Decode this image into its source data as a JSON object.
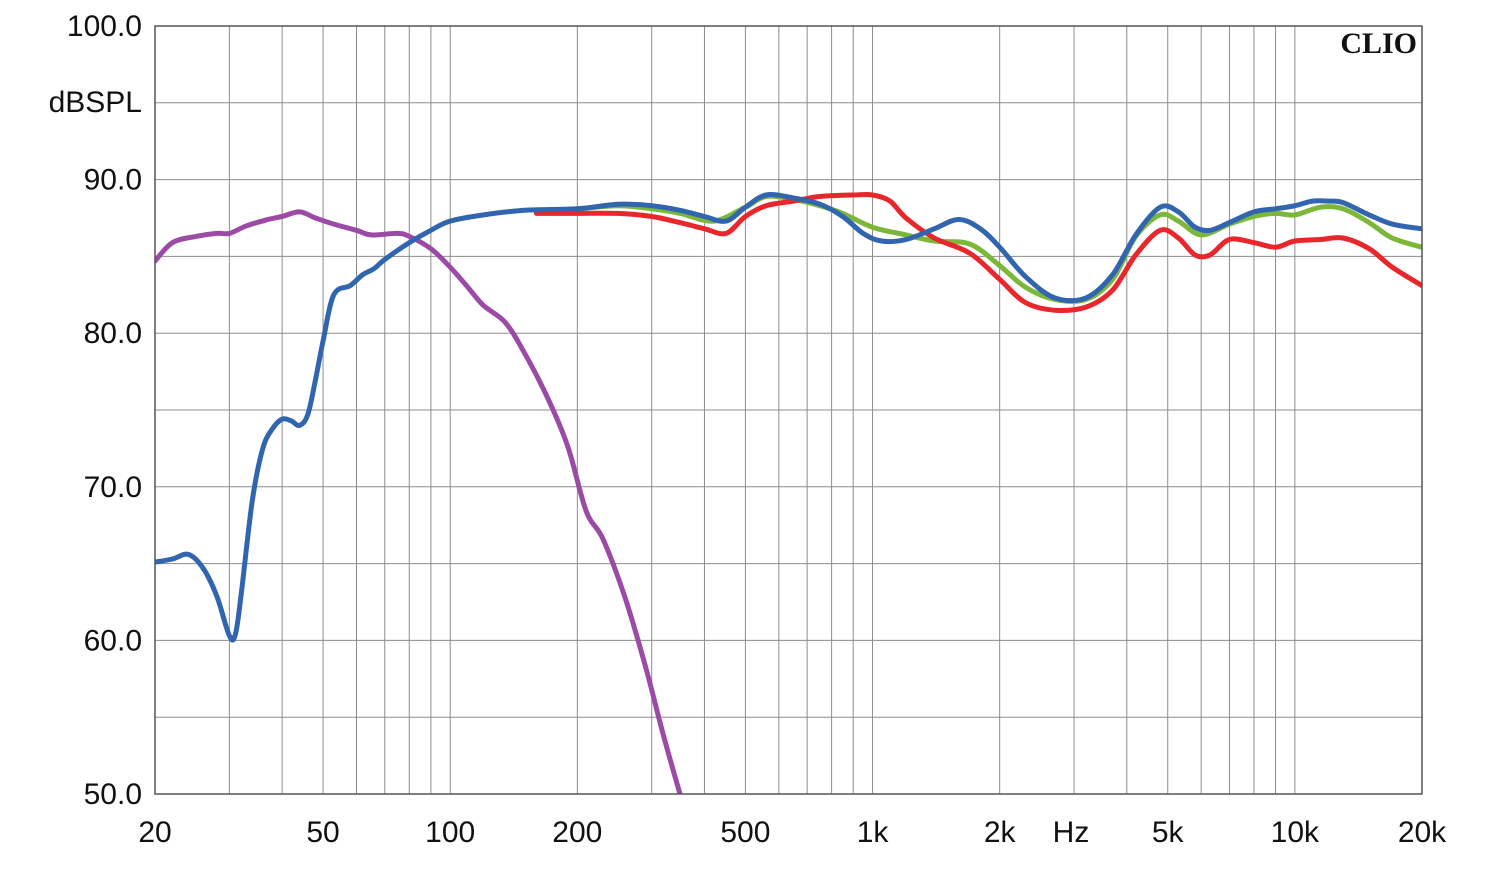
{
  "chart_data": {
    "type": "line",
    "brand": "CLIO",
    "ylabel": "dBSPL",
    "xlabel": "Hz",
    "x_scale": "log",
    "xlim": [
      20,
      20000
    ],
    "ylim": [
      50,
      100
    ],
    "grid": true,
    "legend": "none",
    "y_ticks": [
      {
        "value": 100,
        "label": "100.0"
      },
      {
        "value": 90,
        "label": "90.0"
      },
      {
        "value": 80,
        "label": "80.0"
      },
      {
        "value": 70,
        "label": "70.0"
      },
      {
        "value": 60,
        "label": "60.0"
      },
      {
        "value": 50,
        "label": "50.0"
      }
    ],
    "x_ticks": [
      {
        "value": 20,
        "label": "20"
      },
      {
        "value": 50,
        "label": "50"
      },
      {
        "value": 100,
        "label": "100"
      },
      {
        "value": 200,
        "label": "200"
      },
      {
        "value": 500,
        "label": "500"
      },
      {
        "value": 1000,
        "label": "1k"
      },
      {
        "value": 2000,
        "label": "2k"
      },
      {
        "value": 5000,
        "label": "5k"
      },
      {
        "value": 10000,
        "label": "10k"
      },
      {
        "value": 20000,
        "label": "20k"
      }
    ],
    "series": [
      {
        "color": "#9b4ba5",
        "points": [
          [
            20,
            84.7
          ],
          [
            22,
            85.9
          ],
          [
            25,
            86.3
          ],
          [
            28,
            86.5
          ],
          [
            30,
            86.5
          ],
          [
            33,
            87.0
          ],
          [
            37,
            87.4
          ],
          [
            40,
            87.6
          ],
          [
            44,
            87.9
          ],
          [
            48,
            87.5
          ],
          [
            53,
            87.1
          ],
          [
            60,
            86.7
          ],
          [
            65,
            86.4
          ],
          [
            75,
            86.5
          ],
          [
            80,
            86.3
          ],
          [
            90,
            85.5
          ],
          [
            100,
            84.3
          ],
          [
            110,
            83.0
          ],
          [
            120,
            81.8
          ],
          [
            135,
            80.7
          ],
          [
            150,
            78.7
          ],
          [
            170,
            75.8
          ],
          [
            190,
            72.6
          ],
          [
            210,
            68.4
          ],
          [
            230,
            66.6
          ],
          [
            260,
            62.7
          ],
          [
            290,
            58.3
          ],
          [
            320,
            53.8
          ],
          [
            350,
            50.0
          ]
        ]
      },
      {
        "color": "#7bb83a",
        "points": [
          [
            160,
            87.9
          ],
          [
            200,
            88.1
          ],
          [
            250,
            88.3
          ],
          [
            300,
            88.1
          ],
          [
            350,
            87.8
          ],
          [
            420,
            87.3
          ],
          [
            500,
            88.2
          ],
          [
            560,
            88.9
          ],
          [
            650,
            88.7
          ],
          [
            750,
            88.3
          ],
          [
            850,
            87.8
          ],
          [
            1000,
            86.9
          ],
          [
            1200,
            86.4
          ],
          [
            1400,
            86.0
          ],
          [
            1700,
            85.8
          ],
          [
            2000,
            84.4
          ],
          [
            2300,
            83.0
          ],
          [
            2700,
            82.2
          ],
          [
            3200,
            82.2
          ],
          [
            3700,
            83.5
          ],
          [
            4200,
            86.3
          ],
          [
            4800,
            87.7
          ],
          [
            5300,
            87.3
          ],
          [
            6000,
            86.4
          ],
          [
            7000,
            87.1
          ],
          [
            8000,
            87.6
          ],
          [
            9000,
            87.8
          ],
          [
            10000,
            87.7
          ],
          [
            11500,
            88.2
          ],
          [
            13000,
            88.1
          ],
          [
            15000,
            87.2
          ],
          [
            17000,
            86.2
          ],
          [
            20000,
            85.6
          ]
        ]
      },
      {
        "color": "#e8262c",
        "points": [
          [
            160,
            87.8
          ],
          [
            200,
            87.8
          ],
          [
            250,
            87.8
          ],
          [
            300,
            87.6
          ],
          [
            350,
            87.2
          ],
          [
            400,
            86.8
          ],
          [
            450,
            86.5
          ],
          [
            500,
            87.6
          ],
          [
            560,
            88.3
          ],
          [
            650,
            88.6
          ],
          [
            750,
            88.9
          ],
          [
            900,
            89.0
          ],
          [
            1000,
            89.0
          ],
          [
            1100,
            88.6
          ],
          [
            1200,
            87.5
          ],
          [
            1400,
            86.2
          ],
          [
            1700,
            85.2
          ],
          [
            2000,
            83.5
          ],
          [
            2300,
            82.0
          ],
          [
            2700,
            81.5
          ],
          [
            3200,
            81.7
          ],
          [
            3700,
            82.8
          ],
          [
            4200,
            85.1
          ],
          [
            4800,
            86.7
          ],
          [
            5300,
            86.2
          ],
          [
            5800,
            85.1
          ],
          [
            6300,
            85.1
          ],
          [
            7000,
            86.1
          ],
          [
            8000,
            85.9
          ],
          [
            9000,
            85.6
          ],
          [
            10000,
            86.0
          ],
          [
            11500,
            86.1
          ],
          [
            13000,
            86.2
          ],
          [
            15000,
            85.5
          ],
          [
            17000,
            84.3
          ],
          [
            20000,
            83.1
          ]
        ]
      },
      {
        "color": "#3165b0",
        "points": [
          [
            20,
            65.1
          ],
          [
            22,
            65.3
          ],
          [
            24,
            65.6
          ],
          [
            26,
            64.7
          ],
          [
            28,
            62.9
          ],
          [
            30,
            60.3
          ],
          [
            31,
            60.4
          ],
          [
            32,
            63.0
          ],
          [
            34,
            69.1
          ],
          [
            36,
            72.5
          ],
          [
            38,
            73.8
          ],
          [
            40,
            74.4
          ],
          [
            42,
            74.3
          ],
          [
            44,
            74.0
          ],
          [
            46,
            74.7
          ],
          [
            48,
            77.0
          ],
          [
            50,
            79.5
          ],
          [
            53,
            82.5
          ],
          [
            58,
            83.1
          ],
          [
            62,
            83.8
          ],
          [
            66,
            84.2
          ],
          [
            70,
            84.8
          ],
          [
            80,
            85.9
          ],
          [
            90,
            86.7
          ],
          [
            100,
            87.3
          ],
          [
            120,
            87.7
          ],
          [
            150,
            88.0
          ],
          [
            200,
            88.1
          ],
          [
            250,
            88.4
          ],
          [
            300,
            88.3
          ],
          [
            350,
            88.0
          ],
          [
            400,
            87.6
          ],
          [
            450,
            87.3
          ],
          [
            500,
            88.2
          ],
          [
            560,
            89.0
          ],
          [
            650,
            88.8
          ],
          [
            750,
            88.4
          ],
          [
            850,
            87.6
          ],
          [
            950,
            86.5
          ],
          [
            1050,
            86.0
          ],
          [
            1200,
            86.1
          ],
          [
            1400,
            86.8
          ],
          [
            1600,
            87.4
          ],
          [
            1800,
            86.8
          ],
          [
            2000,
            85.6
          ],
          [
            2300,
            83.7
          ],
          [
            2700,
            82.3
          ],
          [
            3200,
            82.3
          ],
          [
            3700,
            83.8
          ],
          [
            4200,
            86.4
          ],
          [
            4800,
            88.2
          ],
          [
            5300,
            87.9
          ],
          [
            5800,
            86.9
          ],
          [
            6300,
            86.7
          ],
          [
            7000,
            87.2
          ],
          [
            8000,
            87.9
          ],
          [
            9000,
            88.1
          ],
          [
            10000,
            88.3
          ],
          [
            11000,
            88.6
          ],
          [
            12000,
            88.6
          ],
          [
            13000,
            88.5
          ],
          [
            15000,
            87.7
          ],
          [
            17000,
            87.1
          ],
          [
            20000,
            86.8
          ]
        ]
      }
    ]
  }
}
